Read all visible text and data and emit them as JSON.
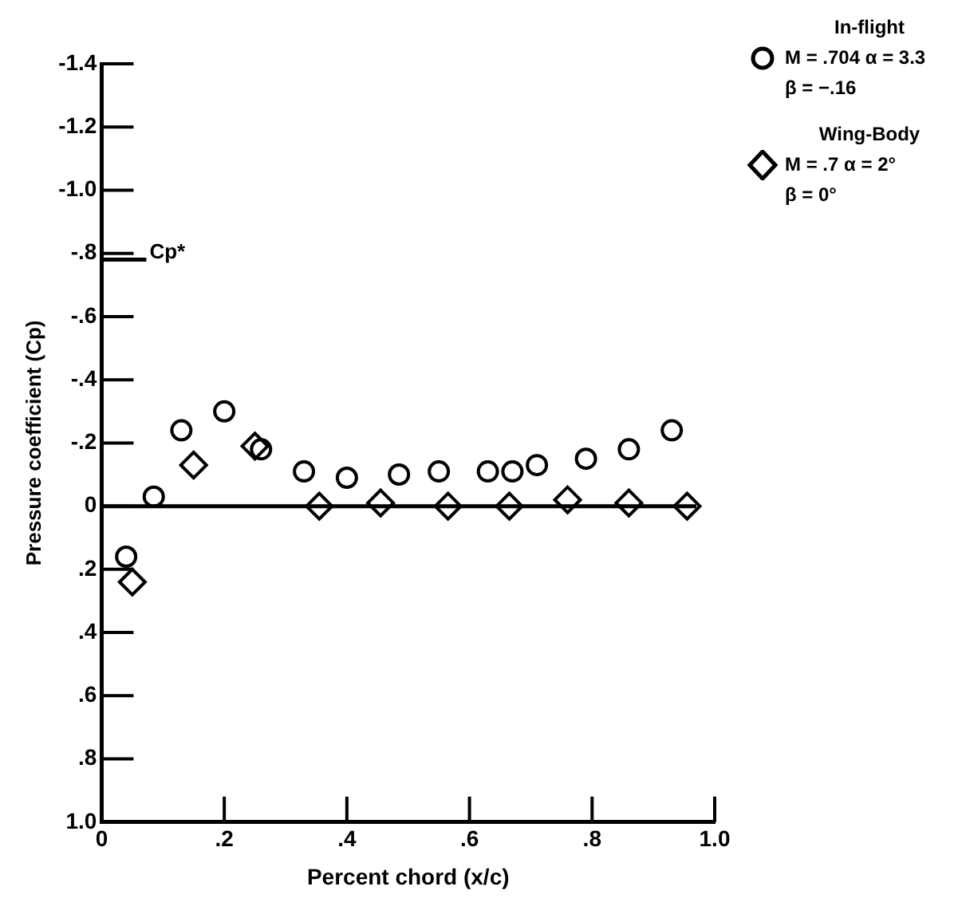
{
  "chart_data": {
    "type": "scatter",
    "xlabel": "Percent chord (x/c)",
    "ylabel": "Pressure coefficient (Cp)",
    "xlim": [
      0,
      1.0
    ],
    "xticks": [
      0,
      {
        "value": 0.2,
        "label": ".2"
      },
      {
        "value": 0.4,
        "label": ".4"
      },
      {
        "value": 0.6,
        "label": ".6"
      },
      {
        "value": 0.8,
        "label": ".8"
      },
      {
        "value": 1.0,
        "label": "1.0"
      }
    ],
    "ylim": [
      1.0,
      -1.4
    ],
    "yticks": [
      {
        "value": -1.4,
        "label": "-1.4"
      },
      {
        "value": -1.2,
        "label": "-1.2"
      },
      {
        "value": -1.0,
        "label": "-1.0"
      },
      {
        "value": -0.8,
        "label": "-.8"
      },
      {
        "value": -0.6,
        "label": "-.6"
      },
      {
        "value": -0.4,
        "label": "-.4"
      },
      {
        "value": -0.2,
        "label": "-.2"
      },
      0,
      {
        "value": 0.2,
        "label": ".2"
      },
      {
        "value": 0.4,
        "label": ".4"
      },
      {
        "value": 0.6,
        "label": ".6"
      },
      {
        "value": 0.8,
        "label": ".8"
      },
      {
        "value": 1.0,
        "label": "1.0"
      }
    ],
    "series": [
      {
        "name": "In-flight",
        "color": "#000000",
        "marker": "circle",
        "x": [
          0.04,
          0.085,
          0.13,
          0.2,
          0.26,
          0.33,
          0.4,
          0.485,
          0.55,
          0.63,
          0.67,
          0.71,
          0.79,
          0.86,
          0.93
        ],
        "values": [
          0.16,
          -0.03,
          -0.24,
          -0.3,
          -0.18,
          -0.11,
          -0.09,
          -0.1,
          -0.11,
          -0.11,
          -0.11,
          -0.13,
          -0.15,
          -0.18,
          -0.24
        ]
      },
      {
        "name": "Wing-Body",
        "color": "#000000",
        "marker": "diamond",
        "x": [
          0.05,
          0.15,
          0.25,
          0.355,
          0.455,
          0.565,
          0.665,
          0.76,
          0.86,
          0.955
        ],
        "values": [
          0.24,
          -0.13,
          -0.19,
          0.0,
          -0.01,
          0.0,
          0.0,
          -0.02,
          -0.01,
          0.0
        ]
      }
    ],
    "ref_lines": [
      {
        "axis": "y",
        "value": -0.78,
        "label": "Cp*"
      },
      {
        "axis": "y",
        "value": 0
      }
    ],
    "annotations": [
      "M = .704  α = 3.3",
      "β = −.16",
      "M = .7  α = 2°",
      "β = 0°"
    ],
    "legend": "top right",
    "grid": false
  }
}
